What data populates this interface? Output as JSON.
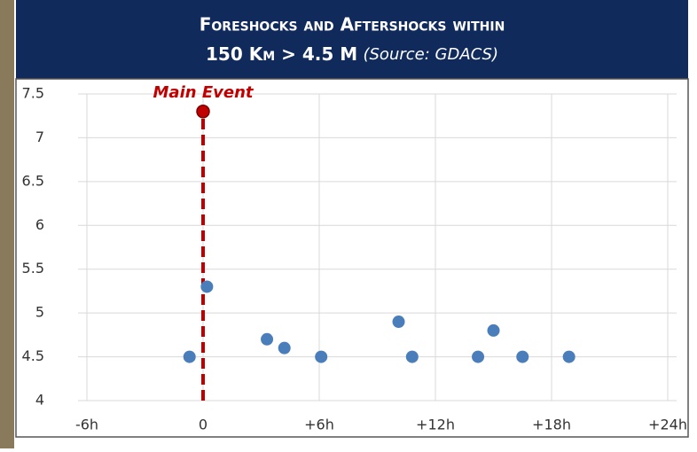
{
  "chart_data": {
    "type": "scatter",
    "title": "Foreshocks and Aftershocks within",
    "subtitle": "150 Km  > 4.5 M",
    "source": "(Source: GDACS)",
    "x": [
      -0.7,
      0.2,
      3.3,
      4.2,
      6.1,
      10.1,
      10.8,
      14.2,
      15.0,
      16.5,
      18.9
    ],
    "values": [
      4.5,
      5.3,
      4.7,
      4.6,
      4.5,
      4.9,
      4.5,
      4.5,
      4.8,
      4.5,
      4.5
    ],
    "color": "#4a7ebb",
    "main_event": {
      "label": "Main Event",
      "x": 0,
      "y": 7.3,
      "color": "#c00000"
    },
    "xlim": [
      -6,
      24
    ],
    "xticks": [
      {
        "value": -6,
        "label": "-6h"
      },
      0,
      {
        "value": 6,
        "label": "+6h"
      },
      {
        "value": 12,
        "label": "+12h"
      },
      {
        "value": 18,
        "label": "+18h"
      },
      {
        "value": 24,
        "label": "+24h"
      }
    ],
    "ylim": [
      4,
      7.5
    ],
    "yticks": [
      4,
      4.5,
      5,
      5.5,
      6,
      6.5,
      7,
      7.5
    ],
    "grid": true
  }
}
